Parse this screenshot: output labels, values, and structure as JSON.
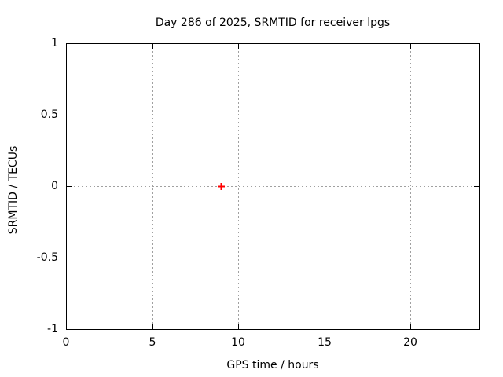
{
  "chart_data": {
    "type": "scatter",
    "title": "Day 286 of 2025, SRMTID for receiver lpgs",
    "xlabel": "GPS time / hours",
    "ylabel": "SRMTID / TECUs",
    "xlim": [
      0,
      24
    ],
    "ylim": [
      -1,
      1
    ],
    "xticks": [
      0,
      5,
      10,
      15,
      20
    ],
    "xtick_labels": [
      "0",
      "5",
      "10",
      "15",
      "20"
    ],
    "yticks": [
      -1,
      -0.5,
      0,
      0.5,
      1
    ],
    "ytick_labels": [
      "-1",
      "-0.5",
      "0",
      "0.5",
      "1"
    ],
    "grid": true,
    "grid_style": "dotted",
    "legend_position": "none",
    "series": [
      {
        "name": "SRMTID",
        "marker": "plus",
        "color": "#ff0000",
        "points": [
          {
            "x": 9.0,
            "y": 0.0
          }
        ]
      }
    ],
    "colors": {
      "background": "#ffffff",
      "border": "#000000",
      "grid": "#a0a0a0",
      "text": "#000000",
      "marker": "#ff0000"
    }
  }
}
